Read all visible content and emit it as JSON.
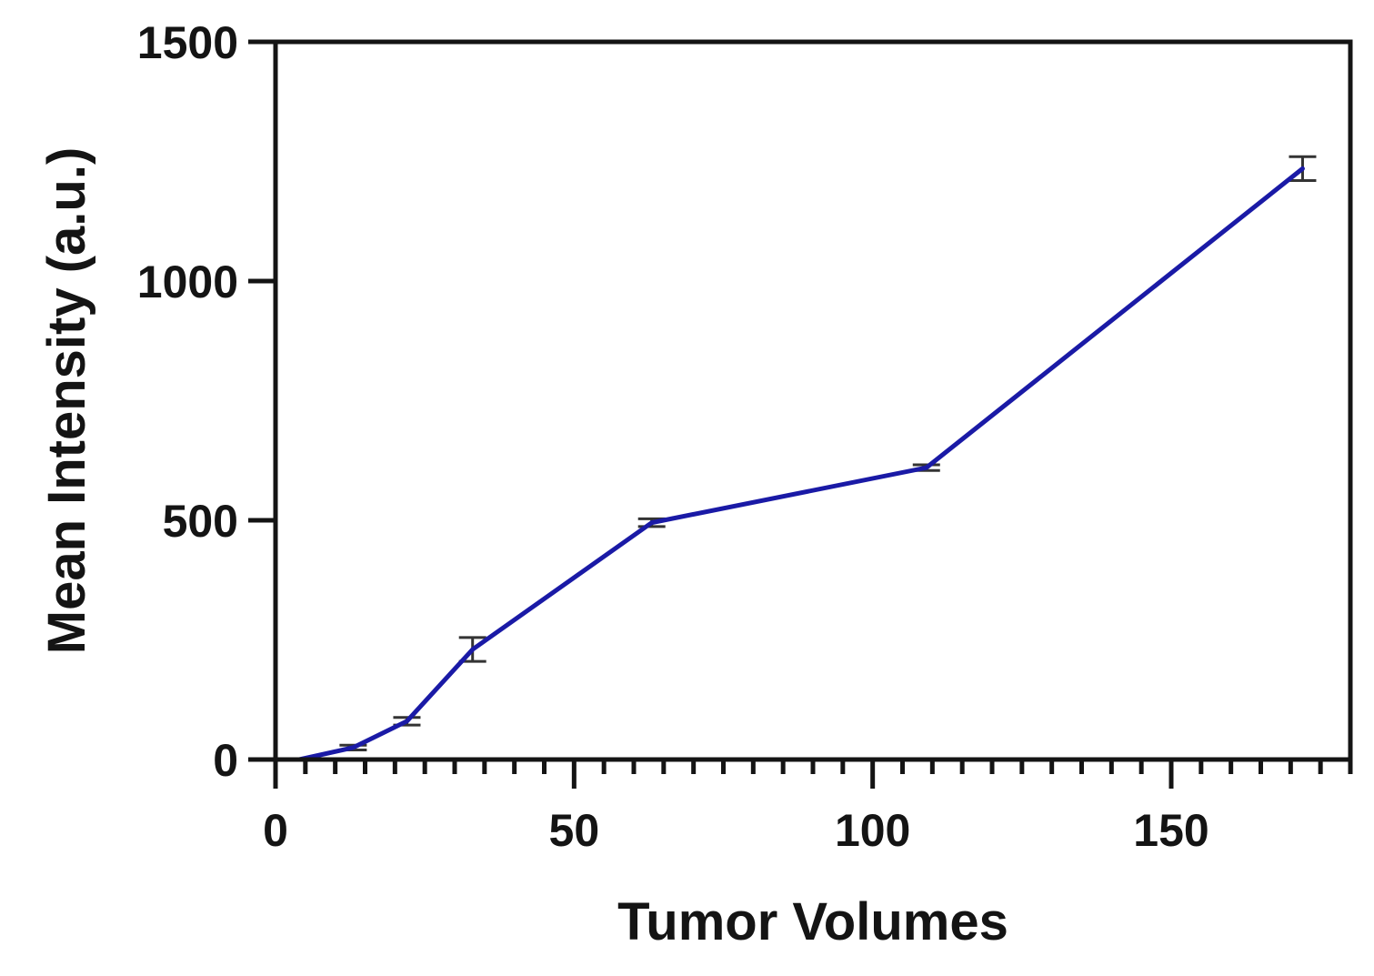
{
  "chart_data": {
    "type": "line",
    "title": "",
    "xlabel": "Tumor Volumes",
    "ylabel": "Mean Intensity (a.u.)",
    "xlim": [
      0,
      180
    ],
    "ylim": [
      0,
      1500
    ],
    "x_ticks": [
      0,
      50,
      100,
      150
    ],
    "x_tick_labels": [
      "0",
      "50",
      "100",
      "150"
    ],
    "x_minor_tick_step": 5,
    "y_ticks": [
      0,
      500,
      1000,
      1500
    ],
    "y_tick_labels": [
      "0",
      "500",
      "1000",
      "1500"
    ],
    "grid": false,
    "legend": "none",
    "line_color": "#1a1aa6",
    "error_bar_color": "#333333",
    "series": [
      {
        "x": [
          4,
          13,
          22,
          33,
          63,
          109,
          172
        ],
        "y": [
          0,
          25,
          80,
          230,
          495,
          610,
          1235
        ],
        "error": [
          2,
          5,
          8,
          25,
          8,
          6,
          25
        ]
      }
    ]
  }
}
